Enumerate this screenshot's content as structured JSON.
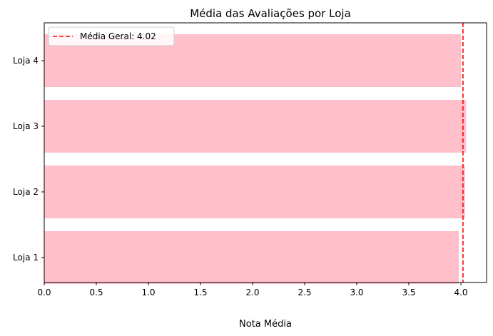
{
  "chart_data": {
    "type": "bar",
    "orientation": "horizontal",
    "title": "Média das Avaliações por Loja",
    "xlabel": "Nota Média",
    "ylabel": "",
    "categories": [
      "Loja 1",
      "Loja 2",
      "Loja 3",
      "Loja 4"
    ],
    "values": [
      3.98,
      4.04,
      4.05,
      4.0
    ],
    "xlim": [
      0,
      4.25
    ],
    "xticks": [
      "0.0",
      "0.5",
      "1.0",
      "1.5",
      "2.0",
      "2.5",
      "3.0",
      "3.5",
      "4.0"
    ],
    "grid": false,
    "reference_line": {
      "value": 4.02,
      "label": "Média Geral: 4.02",
      "style": "dashed",
      "color": "#ff0000"
    },
    "legend_position": "top-left",
    "bar_color": "#ffc0cb"
  }
}
